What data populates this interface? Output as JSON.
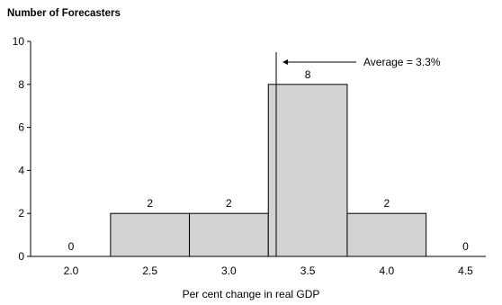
{
  "chart_data": {
    "type": "bar",
    "title": "",
    "ylabel": "Number of Forecasters",
    "xlabel": "Per cent change in real GDP",
    "categories": [
      "2.0",
      "2.5",
      "3.0",
      "3.5",
      "4.0",
      "4.5"
    ],
    "values": [
      0,
      2,
      2,
      8,
      2,
      0
    ],
    "data_labels": [
      "0",
      "2",
      "2",
      "8",
      "2",
      "0"
    ],
    "ylim": [
      0,
      10
    ],
    "yticks": [
      0,
      2,
      4,
      6,
      8,
      10
    ],
    "ytick_labels": [
      "0",
      "2",
      "4",
      "6",
      "8",
      "10"
    ],
    "grid": false,
    "bar_color": "#d3d3d3",
    "edge_color": "#000000",
    "average": {
      "value": 3.3,
      "label": "Average = 3.3%"
    }
  }
}
